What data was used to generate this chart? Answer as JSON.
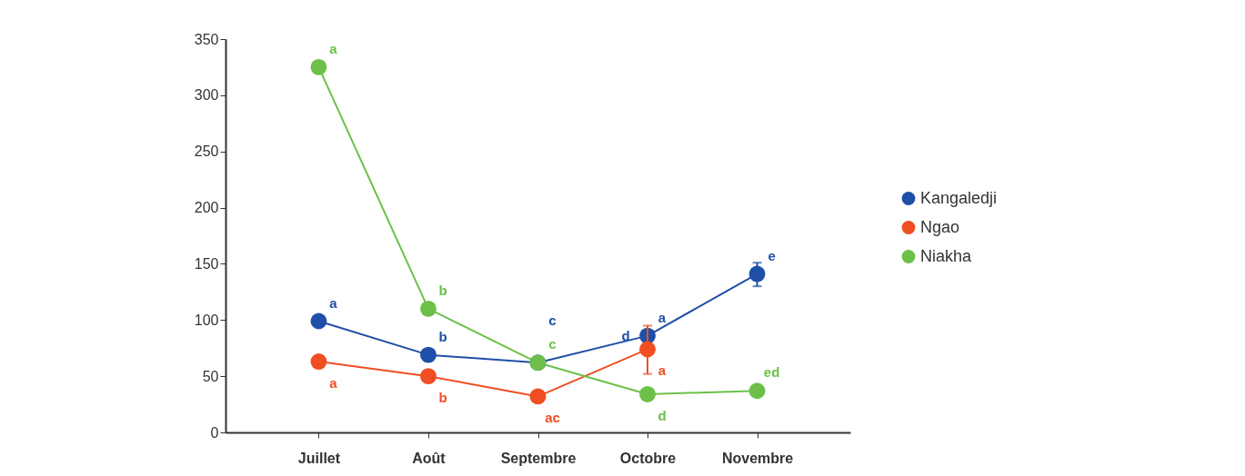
{
  "chart_data": {
    "type": "line",
    "categories": [
      "Juillet",
      "Août",
      "Septembre",
      "Octobre",
      "Novembre"
    ],
    "series": [
      {
        "name": "Kangaledji",
        "color": "#1f4fa8",
        "values": [
          99,
          69,
          62,
          86,
          141
        ],
        "errors": [
          null,
          null,
          null,
          null,
          [
            130,
            151
          ]
        ],
        "value_labels": [
          "a",
          "b",
          "c",
          "a",
          "e"
        ]
      },
      {
        "name": "Ngao",
        "color": "#f04e23",
        "values": [
          63,
          50,
          32,
          74,
          null
        ],
        "errors": [
          null,
          null,
          null,
          [
            52,
            95
          ],
          null
        ],
        "value_labels": [
          "a",
          "b",
          "ac",
          "a",
          null
        ]
      },
      {
        "name": "Niakha",
        "color": "#6cc04a",
        "values": [
          325,
          110,
          62,
          34,
          37
        ],
        "value_labels": [
          "a",
          "b",
          "c",
          "d",
          "ed"
        ]
      }
    ],
    "annotations": [
      {
        "text": "d",
        "x": "Octobre",
        "y": 86
      }
    ],
    "ylim": [
      0,
      350
    ],
    "yticks": [
      0,
      50,
      100,
      150,
      200,
      250,
      300,
      350
    ],
    "marker": "circle",
    "line_style": "solid",
    "grid": false,
    "legend": "right"
  }
}
